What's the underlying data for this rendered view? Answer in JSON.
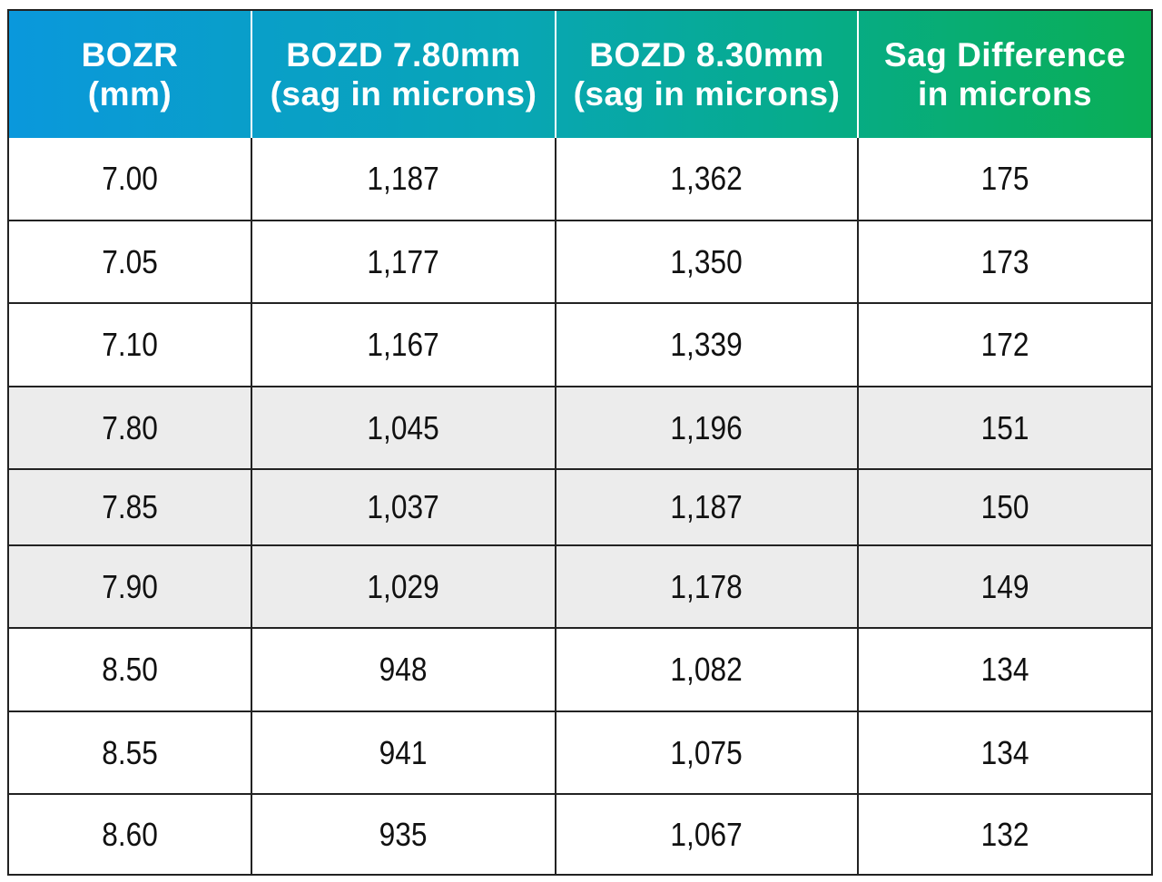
{
  "table": {
    "header": [
      [
        "BOZR",
        "(mm)"
      ],
      [
        "BOZD 7.80mm",
        "(sag in microns)"
      ],
      [
        "BOZD 8.30mm",
        "(sag in microns)"
      ],
      [
        "Sag Difference",
        "in microns"
      ]
    ],
    "rows": [
      [
        "7.00",
        "1,187",
        "1,362",
        "175"
      ],
      [
        "7.05",
        "1,177",
        "1,350",
        "173"
      ],
      [
        "7.10",
        "1,167",
        "1,339",
        "172"
      ],
      [
        "7.80",
        "1,045",
        "1,196",
        "151"
      ],
      [
        "7.85",
        "1,037",
        "1,187",
        "150"
      ],
      [
        "7.90",
        "1,029",
        "1,178",
        "149"
      ],
      [
        "8.50",
        "948",
        "1,082",
        "134"
      ],
      [
        "8.55",
        "941",
        "1,075",
        "134"
      ],
      [
        "8.60",
        "935",
        "1,067",
        "132"
      ]
    ]
  }
}
